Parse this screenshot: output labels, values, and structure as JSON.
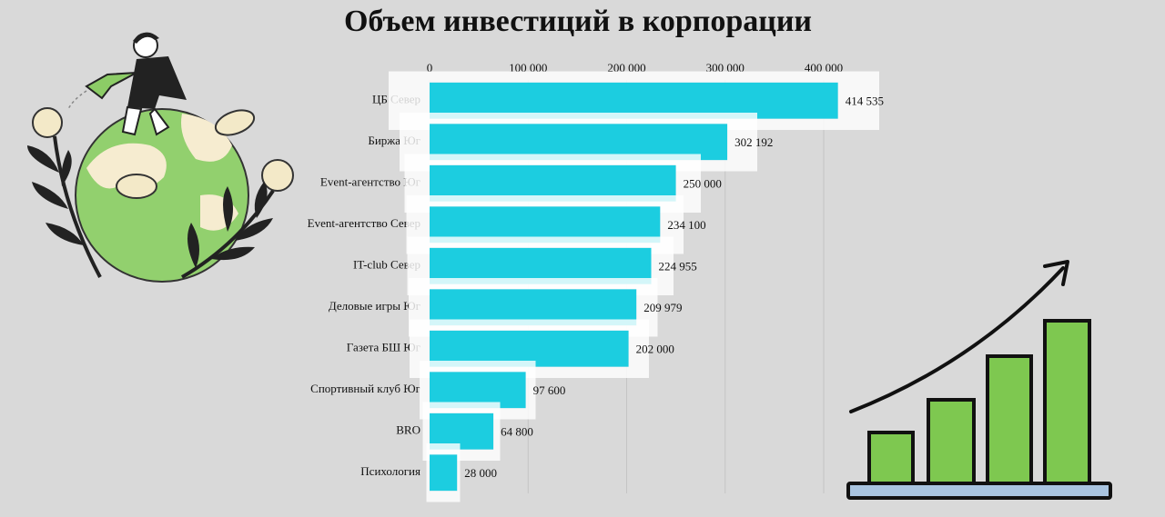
{
  "chart_data": {
    "type": "bar",
    "orientation": "horizontal",
    "title": "Объем инвестиций в корпорации",
    "categories": [
      "ЦБ Север",
      "Биржа Юг",
      "Event-агентство Юг",
      "Event-агентство Север",
      "IT-club Север",
      "Деловые игры Юг",
      "Газета БШ Юг",
      "Спортивный клуб Юг",
      "BRO",
      "Психология"
    ],
    "values": [
      414535,
      302192,
      250000,
      234100,
      224955,
      209979,
      202000,
      97600,
      64800,
      28000
    ],
    "value_labels": [
      "414 535",
      "302 192",
      "250 000",
      "234 100",
      "224 955",
      "209 979",
      "202 000",
      "97 600",
      "64 800",
      "28 000"
    ],
    "color": "#1fcde0",
    "xlim": [
      0,
      400000
    ],
    "xticks": [
      0,
      {
        "value": 100000,
        "label": "100 000"
      },
      {
        "value": 200000,
        "label": "200 000"
      },
      {
        "value": 300000,
        "label": "300 000"
      },
      {
        "value": 400000,
        "label": "400 000"
      }
    ],
    "grid": true
  }
}
